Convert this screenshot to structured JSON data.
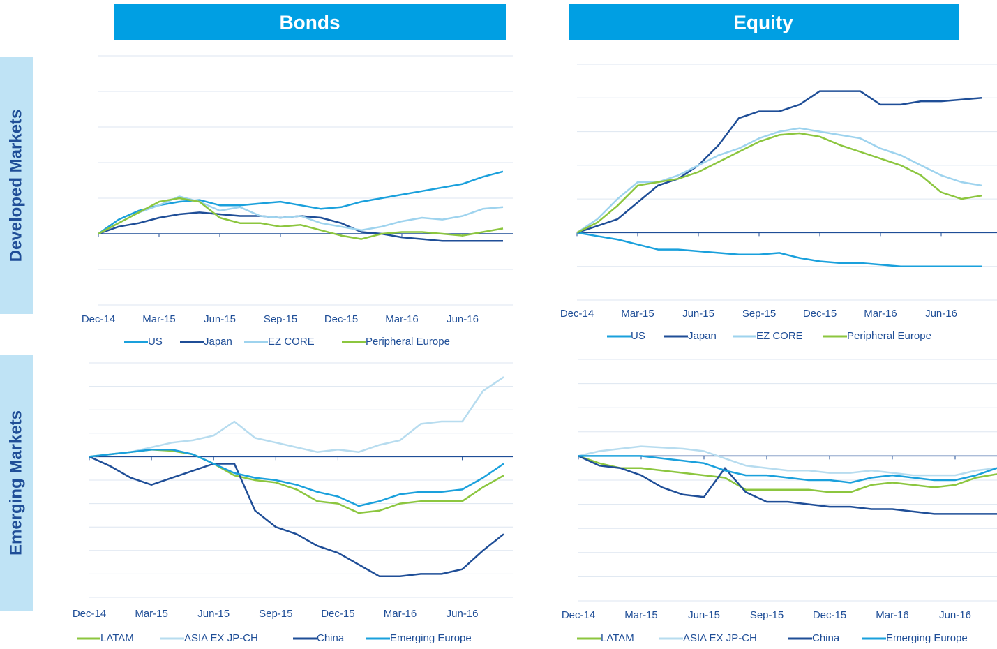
{
  "headers": [
    "Bonds",
    "Equity"
  ],
  "row_labels": [
    "Developed Markets",
    "Emerging Markets"
  ],
  "chart_data": [
    {
      "type": "line",
      "categories": [
        "Dec-14",
        null,
        null,
        "Mar-15",
        null,
        null,
        "Jun-15",
        null,
        null,
        "Sep-15",
        null,
        null,
        "Dec-15",
        null,
        null,
        "Mar-16",
        null,
        null,
        "Jun-16",
        null,
        null
      ],
      "ylim": [
        -2,
        5
      ],
      "yticks": [
        -2,
        -1,
        0,
        1,
        2,
        3,
        4,
        5
      ],
      "grid": true,
      "series": [
        {
          "name": "US",
          "color": "#1aa0dc",
          "values": [
            0,
            0.4,
            0.65,
            0.8,
            0.9,
            0.95,
            0.8,
            0.8,
            0.85,
            0.9,
            0.8,
            0.7,
            0.75,
            0.9,
            1.0,
            1.1,
            1.2,
            1.3,
            1.4,
            1.6,
            1.75
          ]
        },
        {
          "name": "Japan",
          "color": "#1f4e97",
          "values": [
            0,
            0.2,
            0.3,
            0.45,
            0.55,
            0.6,
            0.55,
            0.5,
            0.5,
            0.45,
            0.5,
            0.45,
            0.3,
            0.05,
            0,
            -0.1,
            -0.15,
            -0.2,
            -0.2,
            -0.2,
            -0.2
          ]
        },
        {
          "name": "EZ CORE",
          "color": "#9ed3ee",
          "values": [
            0,
            0.3,
            0.6,
            0.8,
            1.05,
            0.9,
            0.65,
            0.75,
            0.5,
            0.45,
            0.5,
            0.3,
            0.2,
            0.1,
            0.2,
            0.35,
            0.45,
            0.4,
            0.5,
            0.7,
            0.75
          ]
        },
        {
          "name": "Peripheral Europe",
          "color": "#8cc63f",
          "values": [
            0,
            0.3,
            0.6,
            0.9,
            1.0,
            0.9,
            0.45,
            0.3,
            0.3,
            0.2,
            0.25,
            0.1,
            -0.05,
            -0.15,
            0,
            0.05,
            0.05,
            0,
            -0.05,
            0.05,
            0.15
          ]
        }
      ]
    },
    {
      "type": "line",
      "categories": [
        "Dec-14",
        null,
        null,
        "Mar-15",
        null,
        null,
        "Jun-15",
        null,
        null,
        "Sep-15",
        null,
        null,
        "Dec-15",
        null,
        null,
        "Mar-16",
        null,
        null,
        "Jun-16",
        null,
        null
      ],
      "ylim": [
        -2,
        5
      ],
      "yticks": [
        -2,
        -1,
        0,
        1,
        2,
        3,
        4,
        5
      ],
      "grid": true,
      "series": [
        {
          "name": "US",
          "color": "#1aa0dc",
          "values": [
            0,
            -0.1,
            -0.2,
            -0.35,
            -0.5,
            -0.5,
            -0.55,
            -0.6,
            -0.65,
            -0.65,
            -0.6,
            -0.75,
            -0.85,
            -0.9,
            -0.9,
            -0.95,
            -1.0,
            -1.0,
            -1.0,
            -1.0,
            -1.0
          ]
        },
        {
          "name": "Japan",
          "color": "#1f4e97",
          "values": [
            0,
            0.2,
            0.4,
            0.9,
            1.4,
            1.6,
            2.0,
            2.6,
            3.4,
            3.6,
            3.6,
            3.8,
            4.2,
            4.2,
            4.2,
            3.8,
            3.8,
            3.9,
            3.9,
            3.95,
            4.0
          ]
        },
        {
          "name": "EZ CORE",
          "color": "#9ed3ee",
          "values": [
            0,
            0.4,
            1.0,
            1.5,
            1.5,
            1.7,
            2.0,
            2.3,
            2.5,
            2.8,
            3.0,
            3.1,
            3.0,
            2.9,
            2.8,
            2.5,
            2.3,
            2.0,
            1.7,
            1.5,
            1.4
          ]
        },
        {
          "name": "Peripheral Europe",
          "color": "#8cc63f",
          "values": [
            0,
            0.3,
            0.8,
            1.4,
            1.5,
            1.6,
            1.8,
            2.1,
            2.4,
            2.7,
            2.9,
            2.95,
            2.85,
            2.6,
            2.4,
            2.2,
            2.0,
            1.7,
            1.2,
            1.0,
            1.1
          ]
        }
      ]
    },
    {
      "type": "line",
      "categories": [
        "Dec-14",
        null,
        null,
        "Mar-15",
        null,
        null,
        "Jun-15",
        null,
        null,
        "Sep-15",
        null,
        null,
        "Dec-15",
        null,
        null,
        "Mar-16",
        null,
        null,
        "Jun-16",
        null,
        null
      ],
      "ylim": [
        -6,
        4
      ],
      "yticks": [
        -6,
        -5,
        -4,
        -3,
        -2,
        -1,
        0,
        1,
        2,
        3,
        4
      ],
      "grid": true,
      "series": [
        {
          "name": "LATAM",
          "color": "#8cc63f",
          "values": [
            0,
            0.1,
            0.2,
            0.3,
            0.25,
            0.1,
            -0.3,
            -0.8,
            -1.0,
            -1.1,
            -1.4,
            -1.9,
            -2.0,
            -2.4,
            -2.3,
            -2.0,
            -1.9,
            -1.9,
            -1.9,
            -1.3,
            -0.8
          ]
        },
        {
          "name": "ASIA EX JP-CH",
          "color": "#b7dcef",
          "values": [
            0,
            0.1,
            0.2,
            0.4,
            0.6,
            0.7,
            0.9,
            1.5,
            0.8,
            0.6,
            0.4,
            0.2,
            0.3,
            0.2,
            0.5,
            0.7,
            1.4,
            1.5,
            1.5,
            2.8,
            3.4
          ]
        },
        {
          "name": "China",
          "color": "#1f4e97",
          "values": [
            0,
            -0.4,
            -0.9,
            -1.2,
            -0.9,
            -0.6,
            -0.3,
            -0.3,
            -2.3,
            -3.0,
            -3.3,
            -3.8,
            -4.1,
            -4.6,
            -5.1,
            -5.1,
            -5.0,
            -5.0,
            -4.8,
            -4.0,
            -3.3
          ]
        },
        {
          "name": "Emerging Europe",
          "color": "#1aa0dc",
          "values": [
            0,
            0.1,
            0.2,
            0.3,
            0.3,
            0.1,
            -0.3,
            -0.7,
            -0.9,
            -1.0,
            -1.2,
            -1.5,
            -1.7,
            -2.1,
            -1.9,
            -1.6,
            -1.5,
            -1.5,
            -1.4,
            -0.9,
            -0.3
          ]
        }
      ]
    },
    {
      "type": "line",
      "categories": [
        "Dec-14",
        null,
        null,
        "Mar-15",
        null,
        null,
        "Jun-15",
        null,
        null,
        "Sep-15",
        null,
        null,
        "Dec-15",
        null,
        null,
        "Mar-16",
        null,
        null,
        "Jun-16",
        null,
        null
      ],
      "ylim": [
        -6,
        4
      ],
      "yticks": [
        -6,
        -5,
        -4,
        -3,
        -2,
        -1,
        0,
        1,
        2,
        3,
        4
      ],
      "grid": true,
      "series": [
        {
          "name": "LATAM",
          "color": "#8cc63f",
          "values": [
            0,
            -0.3,
            -0.5,
            -0.5,
            -0.6,
            -0.7,
            -0.8,
            -0.9,
            -1.4,
            -1.4,
            -1.4,
            -1.4,
            -1.5,
            -1.5,
            -1.2,
            -1.1,
            -1.2,
            -1.3,
            -1.2,
            -0.9,
            -0.75
          ]
        },
        {
          "name": "ASIA EX JP-CH",
          "color": "#b7dcef",
          "values": [
            0,
            0.2,
            0.3,
            0.4,
            0.35,
            0.3,
            0.2,
            -0.1,
            -0.4,
            -0.5,
            -0.6,
            -0.6,
            -0.7,
            -0.7,
            -0.6,
            -0.7,
            -0.8,
            -0.8,
            -0.8,
            -0.6,
            -0.5
          ]
        },
        {
          "name": "China",
          "color": "#1f4e97",
          "values": [
            0,
            -0.4,
            -0.5,
            -0.8,
            -1.3,
            -1.6,
            -1.7,
            -0.5,
            -1.5,
            -1.9,
            -1.9,
            -2.0,
            -2.1,
            -2.1,
            -2.2,
            -2.2,
            -2.3,
            -2.4,
            -2.4,
            -2.4,
            -2.4
          ]
        },
        {
          "name": "Emerging Europe",
          "color": "#1aa0dc",
          "values": [
            0,
            0,
            0,
            0,
            -0.1,
            -0.2,
            -0.3,
            -0.6,
            -0.8,
            -0.8,
            -0.9,
            -1.0,
            -1.0,
            -1.1,
            -0.9,
            -0.8,
            -0.9,
            -1.0,
            -1.0,
            -0.8,
            -0.5
          ]
        }
      ]
    }
  ]
}
